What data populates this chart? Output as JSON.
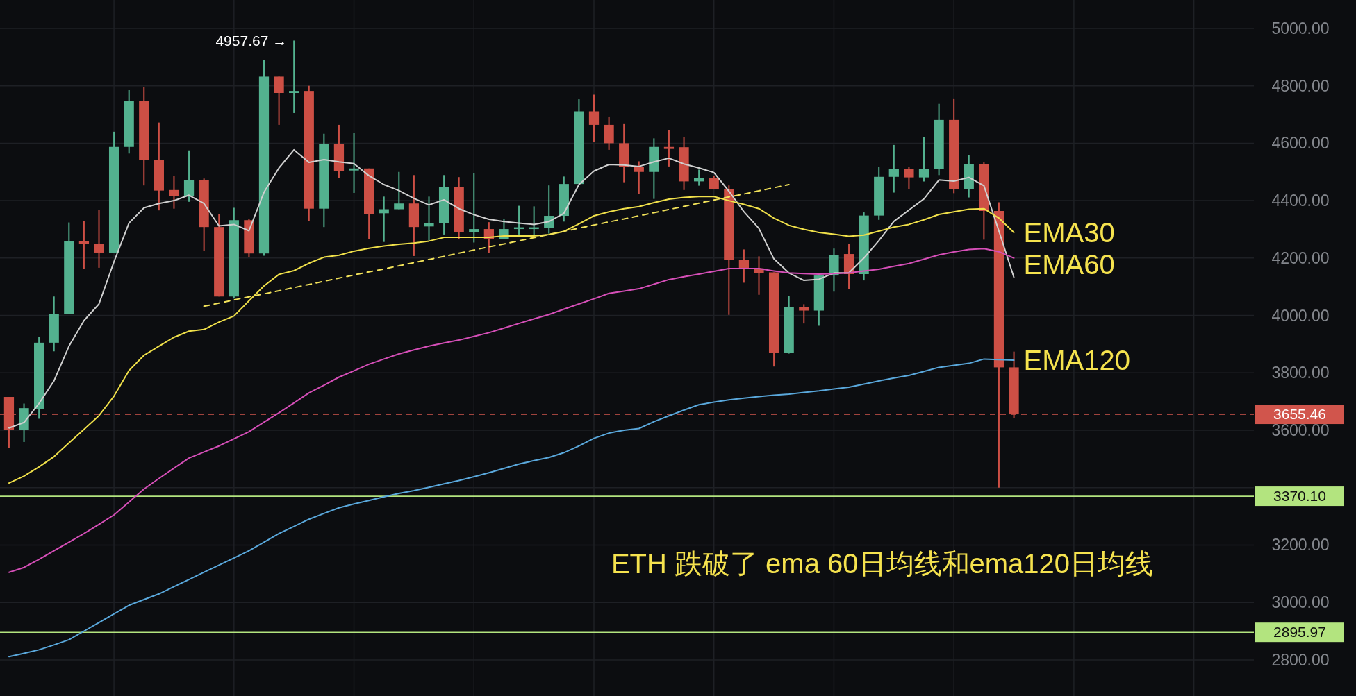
{
  "chart_data": {
    "type": "candlestick",
    "categories": [
      null,
      null,
      null,
      null,
      null,
      null,
      null,
      null,
      null,
      null,
      null,
      null,
      null,
      null,
      null,
      null,
      null,
      null,
      null,
      null,
      null,
      null,
      null,
      null,
      null,
      null,
      null,
      null,
      null,
      null,
      null,
      null,
      null,
      null,
      null,
      null,
      null,
      null,
      null,
      null,
      null,
      null,
      null,
      null,
      null,
      null,
      null,
      null,
      null,
      null,
      null,
      null,
      null,
      null,
      null,
      null,
      null,
      null,
      null,
      null,
      null,
      null,
      null,
      null,
      null,
      null,
      null,
      null
    ],
    "ohlc": [
      [
        3716,
        3716,
        3538,
        3600
      ],
      [
        3600,
        3693,
        3559,
        3677
      ],
      [
        3675,
        3924,
        3640,
        3905
      ],
      [
        3905,
        4066,
        3875,
        4005
      ],
      [
        4005,
        4324,
        4005,
        4258
      ],
      [
        4258,
        4330,
        4161,
        4248
      ],
      [
        4248,
        4368,
        4166,
        4219
      ],
      [
        4219,
        4640,
        4219,
        4587
      ],
      [
        4587,
        4785,
        4564,
        4747
      ],
      [
        4747,
        4796,
        4453,
        4542
      ],
      [
        4542,
        4672,
        4366,
        4435
      ],
      [
        4437,
        4487,
        4372,
        4416
      ],
      [
        4416,
        4575,
        4396,
        4472
      ],
      [
        4472,
        4477,
        4224,
        4308
      ],
      [
        4308,
        4354,
        4066,
        4066
      ],
      [
        4066,
        4375,
        4059,
        4332
      ],
      [
        4332,
        4337,
        4203,
        4216
      ],
      [
        4216,
        4891,
        4208,
        4832
      ],
      [
        4832,
        4832,
        4664,
        4775
      ],
      [
        4775,
        4957.67,
        4705,
        4782
      ],
      [
        4782,
        4800,
        4329,
        4372
      ],
      [
        4372,
        4633,
        4308,
        4598
      ],
      [
        4598,
        4664,
        4479,
        4503
      ],
      [
        4505,
        4635,
        4427,
        4512
      ],
      [
        4512,
        4512,
        4266,
        4354
      ],
      [
        4356,
        4414,
        4256,
        4370
      ],
      [
        4370,
        4500,
        4370,
        4390
      ],
      [
        4390,
        4489,
        4207,
        4308
      ],
      [
        4310,
        4414,
        4261,
        4322
      ],
      [
        4322,
        4489,
        4282,
        4447
      ],
      [
        4447,
        4482,
        4266,
        4291
      ],
      [
        4291,
        4495,
        4254,
        4301
      ],
      [
        4301,
        4325,
        4219,
        4266
      ],
      [
        4266,
        4335,
        4266,
        4301
      ],
      [
        4301,
        4382,
        4282,
        4307
      ],
      [
        4301,
        4380,
        4280,
        4307
      ],
      [
        4306,
        4453,
        4285,
        4347
      ],
      [
        4347,
        4484,
        4327,
        4458
      ],
      [
        4458,
        4753,
        4458,
        4711
      ],
      [
        4711,
        4769,
        4606,
        4664
      ],
      [
        4664,
        4693,
        4577,
        4600
      ],
      [
        4600,
        4669,
        4464,
        4517
      ],
      [
        4517,
        4537,
        4422,
        4500
      ],
      [
        4500,
        4617,
        4406,
        4587
      ],
      [
        4587,
        4645,
        4519,
        4580
      ],
      [
        4586,
        4622,
        4437,
        4467
      ],
      [
        4467,
        4508,
        4452,
        4478
      ],
      [
        4478,
        4487,
        4441,
        4441
      ],
      [
        4441,
        4453,
        4002,
        4194
      ],
      [
        4194,
        4230,
        4114,
        4164
      ],
      [
        4164,
        4206,
        4072,
        4147
      ],
      [
        4150,
        4150,
        3822,
        3870
      ],
      [
        3870,
        4067,
        3867,
        4030
      ],
      [
        4030,
        4039,
        3972,
        4017
      ],
      [
        4017,
        4139,
        3964,
        4139
      ],
      [
        4139,
        4233,
        4083,
        4211
      ],
      [
        4214,
        4248,
        4092,
        4144
      ],
      [
        4144,
        4359,
        4122,
        4348
      ],
      [
        4348,
        4517,
        4333,
        4483
      ],
      [
        4483,
        4594,
        4428,
        4511
      ],
      [
        4511,
        4517,
        4441,
        4481
      ],
      [
        4481,
        4620,
        4467,
        4511
      ],
      [
        4511,
        4737,
        4489,
        4681
      ],
      [
        4681,
        4756,
        4426,
        4441
      ],
      [
        4441,
        4559,
        4411,
        4528
      ],
      [
        4528,
        4533,
        4264,
        4364
      ],
      [
        4364,
        4394,
        3400,
        3819
      ],
      [
        3819,
        3874,
        3641,
        3655.46
      ]
    ],
    "colors": [
      "#cd4f45",
      "#53b18f",
      "#53b18f",
      "#53b18f",
      "#53b18f",
      "#cd4f45",
      "#cd4f45",
      "#53b18f",
      "#53b18f",
      "#cd4f45",
      "#cd4f45",
      "#cd4f45",
      "#53b18f",
      "#cd4f45",
      "#cd4f45",
      "#53b18f",
      "#cd4f45",
      "#53b18f",
      "#cd4f45",
      "#53b18f",
      "#cd4f45",
      "#53b18f",
      "#cd4f45",
      "#53b18f",
      "#cd4f45",
      "#53b18f",
      "#53b18f",
      "#cd4f45",
      "#53b18f",
      "#53b18f",
      "#cd4f45",
      "#53b18f",
      "#cd4f45",
      "#53b18f",
      "#53b18f",
      "#53b18f",
      "#53b18f",
      "#53b18f",
      "#53b18f",
      "#cd4f45",
      "#cd4f45",
      "#cd4f45",
      "#cd4f45",
      "#53b18f",
      "#cd4f45",
      "#cd4f45",
      "#53b18f",
      "#cd4f45",
      "#cd4f45",
      "#cd4f45",
      "#cd4f45",
      "#cd4f45",
      "#53b18f",
      "#cd4f45",
      "#53b18f",
      "#53b18f",
      "#cd4f45",
      "#53b18f",
      "#53b18f",
      "#53b18f",
      "#cd4f45",
      "#53b18f",
      "#53b18f",
      "#cd4f45",
      "#53b18f",
      "#cd4f45",
      "#cd4f45",
      "#cd4f45"
    ],
    "series": [
      {
        "type": "line",
        "color": "#d0d0d0",
        "values": [
          3608,
          3627,
          3693,
          3772,
          3893,
          3982,
          4040,
          4187,
          4322,
          4375,
          4390,
          4400,
          4419,
          4390,
          4312,
          4317,
          4295,
          4429,
          4514,
          4577,
          4533,
          4543,
          4535,
          4529,
          4487,
          4456,
          4435,
          4408,
          4385,
          4403,
          4372,
          4351,
          4335,
          4327,
          4322,
          4317,
          4327,
          4356,
          4456,
          4503,
          4526,
          4524,
          4519,
          4535,
          4548,
          4528,
          4514,
          4498,
          4433,
          4361,
          4303,
          4197,
          4148,
          4122,
          4126,
          4148,
          4148,
          4200,
          4261,
          4328,
          4367,
          4406,
          4472,
          4468,
          4481,
          4452,
          4294,
          4133
        ]
      },
      {
        "type": "line",
        "name": "EMA30",
        "color": "#f0e04a",
        "values": [
          3416,
          3440,
          3472,
          3508,
          3556,
          3603,
          3651,
          3719,
          3808,
          3861,
          3893,
          3924,
          3945,
          3951,
          3977,
          3998,
          4051,
          4103,
          4143,
          4156,
          4182,
          4203,
          4210,
          4224,
          4234,
          4242,
          4248,
          4252,
          4259,
          4272,
          4272,
          4272,
          4272,
          4277,
          4277,
          4277,
          4282,
          4293,
          4319,
          4347,
          4361,
          4372,
          4379,
          4393,
          4405,
          4411,
          4414,
          4414,
          4400,
          4387,
          4372,
          4339,
          4314,
          4300,
          4289,
          4283,
          4276,
          4280,
          4294,
          4308,
          4317,
          4333,
          4352,
          4361,
          4370,
          4372,
          4339,
          4289
        ]
      },
      {
        "type": "line",
        "name": "EMA60",
        "color": "#d64fb8",
        "values": [
          3105,
          3122,
          3150,
          3180,
          3210,
          3240,
          3272,
          3305,
          3350,
          3395,
          3432,
          3468,
          3503,
          3524,
          3545,
          3570,
          3595,
          3628,
          3661,
          3695,
          3730,
          3757,
          3785,
          3807,
          3830,
          3848,
          3866,
          3880,
          3893,
          3904,
          3914,
          3927,
          3940,
          3956,
          3972,
          3988,
          4003,
          4022,
          4040,
          4058,
          4077,
          4085,
          4093,
          4109,
          4125,
          4135,
          4144,
          4154,
          4163,
          4163,
          4163,
          4155,
          4148,
          4146,
          4144,
          4146,
          4148,
          4155,
          4161,
          4171,
          4181,
          4196,
          4211,
          4221,
          4230,
          4233,
          4222,
          4200
        ]
      },
      {
        "type": "line",
        "name": "EMA120",
        "color": "#5aa8dc",
        "values": [
          2811,
          2823,
          2835,
          2852,
          2870,
          2900,
          2930,
          2960,
          2990,
          3010,
          3030,
          3055,
          3080,
          3105,
          3130,
          3155,
          3180,
          3210,
          3240,
          3265,
          3290,
          3310,
          3330,
          3343,
          3355,
          3368,
          3380,
          3390,
          3401,
          3413,
          3425,
          3438,
          3452,
          3467,
          3482,
          3494,
          3505,
          3522,
          3545,
          3572,
          3590,
          3600,
          3606,
          3630,
          3650,
          3670,
          3689,
          3698,
          3706,
          3712,
          3717,
          3722,
          3726,
          3732,
          3737,
          3744,
          3750,
          3761,
          3772,
          3782,
          3791,
          3805,
          3819,
          3826,
          3833,
          3848,
          3846,
          3844
        ]
      },
      {
        "type": "line",
        "color": "#f2e25a",
        "line_style": "dashed",
        "values": [
          null,
          null,
          null,
          null,
          null,
          null,
          null,
          null,
          null,
          null,
          null,
          null,
          null,
          4032,
          4043,
          4054,
          4065,
          4075,
          4086,
          4097,
          4108,
          4119,
          4130,
          4141,
          4152,
          4162,
          4173,
          4184,
          4195,
          4206,
          4217,
          4228,
          4239,
          4249,
          4260,
          4271,
          4282,
          4293,
          4304,
          4315,
          4326,
          4336,
          4347,
          4358,
          4369,
          4380,
          4391,
          4402,
          4413,
          4423,
          4434,
          4445,
          4456,
          null,
          null,
          null,
          null,
          null,
          null,
          null,
          null,
          null,
          null,
          null,
          null,
          null,
          null,
          null
        ]
      }
    ],
    "ref_lines": [
      {
        "axis": "y",
        "value": 3655.46,
        "label": "3655.46",
        "color": "#d1554c",
        "line_style": "dashed"
      },
      {
        "axis": "y",
        "value": 3370.1,
        "label": "3370.10",
        "color": "#b3e47f",
        "line_style": "solid"
      },
      {
        "axis": "y",
        "value": 2895.97,
        "label": "2895.97",
        "color": "#b3e47f",
        "line_style": "solid"
      }
    ],
    "annotations": [
      "4957.67 →",
      "ETH 跌破了 ema 60日均线和ema120日均线"
    ],
    "ylim": [
      2674,
      5099
    ],
    "yticks": [
      {
        "value": 2800,
        "label": "2800.00"
      },
      {
        "value": 3000,
        "label": "3000.00"
      },
      {
        "value": 3200,
        "label": "3200.00"
      },
      {
        "value": 3400,
        "label": null
      },
      {
        "value": 3600,
        "label": "3600.00"
      },
      {
        "value": 3800,
        "label": "3800.00"
      },
      {
        "value": 4000,
        "label": "4000.00"
      },
      {
        "value": 4200,
        "label": "4200.00"
      },
      {
        "value": 4400,
        "label": "4400.00"
      },
      {
        "value": 4600,
        "label": "4600.00"
      },
      {
        "value": 4800,
        "label": "4800.00"
      },
      {
        "value": 5000,
        "label": "5000.00"
      }
    ],
    "grid": true,
    "tick_labels": "y"
  }
}
